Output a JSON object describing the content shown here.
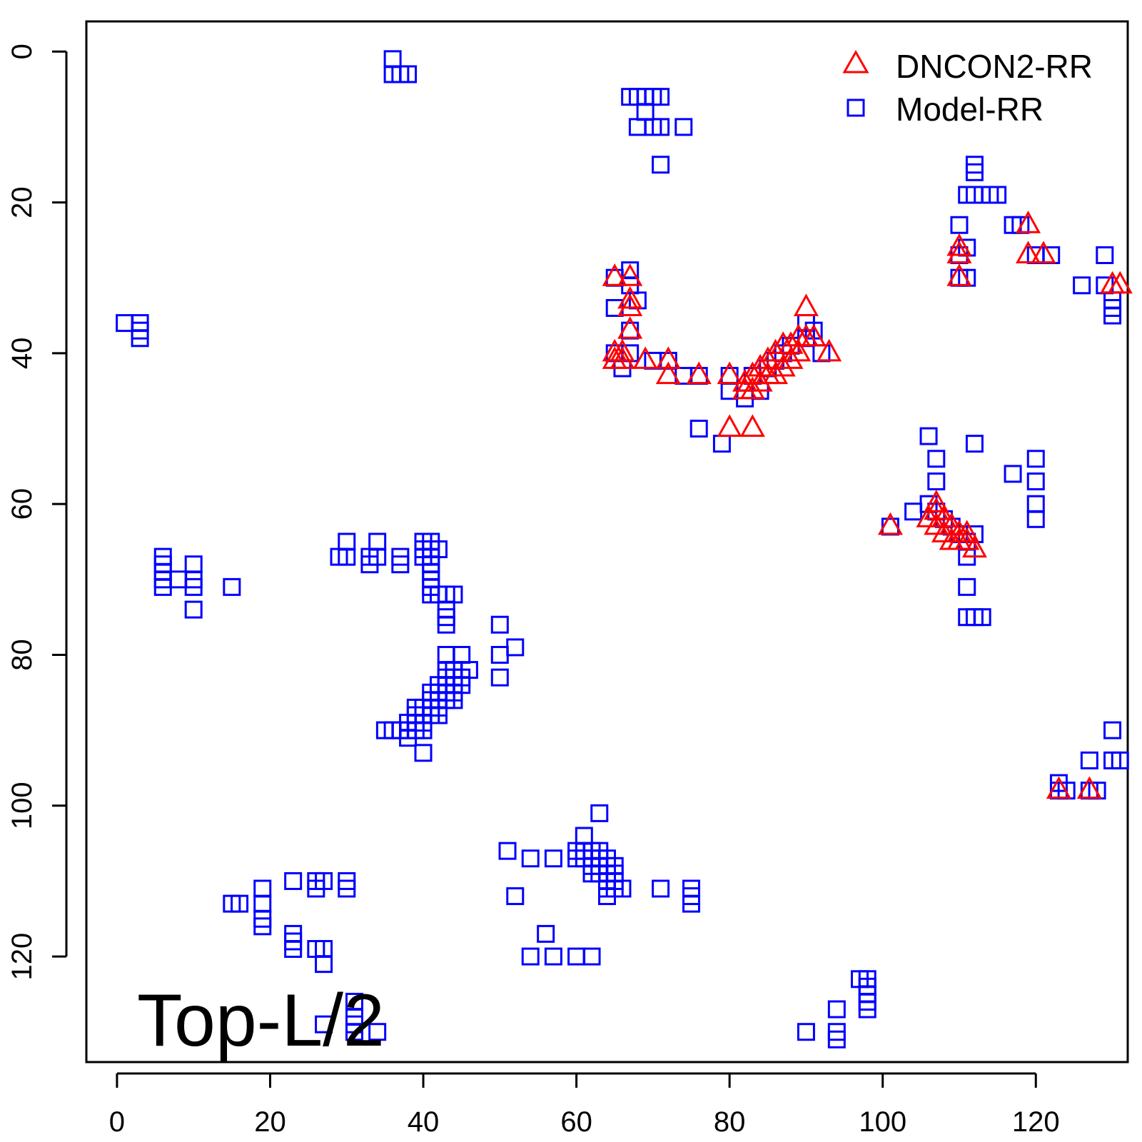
{
  "chart_data": {
    "type": "scatter",
    "title": "",
    "xlabel": "",
    "ylabel": "",
    "xlim": [
      -4,
      132
    ],
    "ylim": [
      134,
      -4
    ],
    "y_inverted": true,
    "grid": false,
    "legend_position": "top-right",
    "x_ticks": [
      0,
      20,
      40,
      60,
      80,
      100,
      120
    ],
    "y_ticks": [
      0,
      20,
      40,
      60,
      80,
      100,
      120
    ],
    "annotation": "Top-L/2",
    "series": [
      {
        "name": "DNCON2-RR",
        "marker": "triangle",
        "color": "#ff0000",
        "points": [
          [
            65,
            30
          ],
          [
            67,
            30
          ],
          [
            67,
            33
          ],
          [
            67,
            34
          ],
          [
            67,
            37
          ],
          [
            65,
            40
          ],
          [
            66,
            40
          ],
          [
            65,
            41
          ],
          [
            66,
            41
          ],
          [
            69,
            41
          ],
          [
            72,
            41
          ],
          [
            72,
            43
          ],
          [
            76,
            43
          ],
          [
            80,
            43
          ],
          [
            82,
            44
          ],
          [
            83,
            43
          ],
          [
            84,
            42
          ],
          [
            85,
            41
          ],
          [
            86,
            40
          ],
          [
            87,
            39
          ],
          [
            88,
            39
          ],
          [
            89,
            38
          ],
          [
            90,
            38
          ],
          [
            91,
            38
          ],
          [
            90,
            34
          ],
          [
            93,
            40
          ],
          [
            82,
            45
          ],
          [
            83,
            45
          ],
          [
            84,
            44
          ],
          [
            85,
            43
          ],
          [
            86,
            43
          ],
          [
            87,
            42
          ],
          [
            88,
            41
          ],
          [
            89,
            40
          ],
          [
            80,
            50
          ],
          [
            83,
            50
          ],
          [
            110,
            26
          ],
          [
            110,
            27
          ],
          [
            110,
            30
          ],
          [
            119,
            23
          ],
          [
            119,
            27
          ],
          [
            121,
            27
          ],
          [
            130,
            31
          ],
          [
            131,
            31
          ],
          [
            101,
            63
          ],
          [
            106,
            62
          ],
          [
            107,
            60
          ],
          [
            107,
            61
          ],
          [
            108,
            62
          ],
          [
            109,
            63
          ],
          [
            110,
            64
          ],
          [
            111,
            64
          ],
          [
            107,
            63
          ],
          [
            108,
            64
          ],
          [
            109,
            65
          ],
          [
            110,
            65
          ],
          [
            111,
            65
          ],
          [
            112,
            66
          ],
          [
            123,
            98
          ],
          [
            127,
            98
          ]
        ]
      },
      {
        "name": "Model-RR",
        "marker": "square",
        "color": "#0000ff",
        "points": [
          [
            36,
            1
          ],
          [
            36,
            3
          ],
          [
            37,
            3
          ],
          [
            38,
            3
          ],
          [
            67,
            6
          ],
          [
            68,
            6
          ],
          [
            69,
            6
          ],
          [
            70,
            6
          ],
          [
            71,
            6
          ],
          [
            69,
            8
          ],
          [
            68,
            10
          ],
          [
            70,
            10
          ],
          [
            71,
            10
          ],
          [
            74,
            10
          ],
          [
            71,
            15
          ],
          [
            1,
            36
          ],
          [
            3,
            36
          ],
          [
            3,
            37
          ],
          [
            3,
            38
          ],
          [
            65,
            30
          ],
          [
            67,
            29
          ],
          [
            67,
            31
          ],
          [
            65,
            34
          ],
          [
            68,
            33
          ],
          [
            67,
            37
          ],
          [
            65,
            40
          ],
          [
            67,
            40
          ],
          [
            66,
            42
          ],
          [
            70,
            41
          ],
          [
            72,
            41
          ],
          [
            74,
            43
          ],
          [
            76,
            43
          ],
          [
            76,
            50
          ],
          [
            79,
            52
          ],
          [
            80,
            43
          ],
          [
            80,
            45
          ],
          [
            82,
            46
          ],
          [
            83,
            43
          ],
          [
            84,
            45
          ],
          [
            85,
            42
          ],
          [
            86,
            41
          ],
          [
            87,
            40
          ],
          [
            88,
            39
          ],
          [
            90,
            36
          ],
          [
            90,
            38
          ],
          [
            91,
            37
          ],
          [
            92,
            40
          ],
          [
            111,
            19
          ],
          [
            112,
            15
          ],
          [
            112,
            16
          ],
          [
            112,
            19
          ],
          [
            114,
            19
          ],
          [
            115,
            19
          ],
          [
            117,
            23
          ],
          [
            118,
            23
          ],
          [
            120,
            27
          ],
          [
            122,
            27
          ],
          [
            110,
            23
          ],
          [
            110,
            27
          ],
          [
            110,
            30
          ],
          [
            111,
            26
          ],
          [
            111,
            30
          ],
          [
            126,
            31
          ],
          [
            129,
            27
          ],
          [
            129,
            31
          ],
          [
            130,
            33
          ],
          [
            130,
            34
          ],
          [
            130,
            35
          ],
          [
            106,
            51
          ],
          [
            107,
            54
          ],
          [
            107,
            57
          ],
          [
            112,
            52
          ],
          [
            117,
            56
          ],
          [
            120,
            54
          ],
          [
            120,
            57
          ],
          [
            120,
            60
          ],
          [
            120,
            62
          ],
          [
            104,
            61
          ],
          [
            101,
            63
          ],
          [
            106,
            60
          ],
          [
            107,
            61
          ],
          [
            108,
            62
          ],
          [
            109,
            63
          ],
          [
            110,
            64
          ],
          [
            111,
            65
          ],
          [
            112,
            64
          ],
          [
            111,
            67
          ],
          [
            111,
            71
          ],
          [
            111,
            75
          ],
          [
            112,
            75
          ],
          [
            113,
            75
          ],
          [
            6,
            67
          ],
          [
            6,
            68
          ],
          [
            6,
            69
          ],
          [
            6,
            70
          ],
          [
            6,
            71
          ],
          [
            8,
            70
          ],
          [
            10,
            68
          ],
          [
            10,
            70
          ],
          [
            10,
            71
          ],
          [
            10,
            74
          ],
          [
            15,
            71
          ],
          [
            29,
            67
          ],
          [
            30,
            65
          ],
          [
            30,
            67
          ],
          [
            33,
            67
          ],
          [
            33,
            68
          ],
          [
            34,
            65
          ],
          [
            34,
            67
          ],
          [
            37,
            67
          ],
          [
            37,
            68
          ],
          [
            40,
            65
          ],
          [
            41,
            65
          ],
          [
            40,
            66
          ],
          [
            41,
            66
          ],
          [
            42,
            66
          ],
          [
            40,
            67
          ],
          [
            41,
            67
          ],
          [
            41,
            68
          ],
          [
            41,
            69
          ],
          [
            41,
            70
          ],
          [
            41,
            71
          ],
          [
            41,
            72
          ],
          [
            42,
            72
          ],
          [
            43,
            72
          ],
          [
            44,
            72
          ],
          [
            43,
            74
          ],
          [
            43,
            75
          ],
          [
            43,
            76
          ],
          [
            43,
            80
          ],
          [
            45,
            80
          ],
          [
            43,
            82
          ],
          [
            44,
            82
          ],
          [
            46,
            82
          ],
          [
            43,
            83
          ],
          [
            44,
            83
          ],
          [
            45,
            83
          ],
          [
            42,
            84
          ],
          [
            43,
            84
          ],
          [
            44,
            84
          ],
          [
            45,
            84
          ],
          [
            41,
            85
          ],
          [
            42,
            85
          ],
          [
            43,
            85
          ],
          [
            44,
            85
          ],
          [
            41,
            86
          ],
          [
            42,
            86
          ],
          [
            43,
            86
          ],
          [
            44,
            86
          ],
          [
            39,
            87
          ],
          [
            40,
            87
          ],
          [
            41,
            87
          ],
          [
            42,
            87
          ],
          [
            39,
            88
          ],
          [
            40,
            88
          ],
          [
            41,
            88
          ],
          [
            42,
            88
          ],
          [
            38,
            89
          ],
          [
            39,
            89
          ],
          [
            40,
            89
          ],
          [
            35,
            90
          ],
          [
            36,
            90
          ],
          [
            37,
            90
          ],
          [
            38,
            90
          ],
          [
            39,
            90
          ],
          [
            40,
            90
          ],
          [
            38,
            91
          ],
          [
            40,
            93
          ],
          [
            50,
            76
          ],
          [
            50,
            80
          ],
          [
            52,
            79
          ],
          [
            50,
            83
          ],
          [
            15,
            113
          ],
          [
            16,
            113
          ],
          [
            19,
            111
          ],
          [
            19,
            113
          ],
          [
            19,
            115
          ],
          [
            19,
            116
          ],
          [
            23,
            110
          ],
          [
            23,
            117
          ],
          [
            23,
            118
          ],
          [
            23,
            119
          ],
          [
            26,
            110
          ],
          [
            27,
            110
          ],
          [
            26,
            111
          ],
          [
            26,
            119
          ],
          [
            27,
            119
          ],
          [
            27,
            121
          ],
          [
            30,
            110
          ],
          [
            30,
            111
          ],
          [
            31,
            126
          ],
          [
            31,
            128
          ],
          [
            31,
            129
          ],
          [
            27,
            129
          ],
          [
            31,
            130
          ],
          [
            34,
            130
          ],
          [
            51,
            106
          ],
          [
            52,
            112
          ],
          [
            54,
            107
          ],
          [
            57,
            107
          ],
          [
            61,
            104
          ],
          [
            60,
            106
          ],
          [
            61,
            106
          ],
          [
            62,
            106
          ],
          [
            63,
            106
          ],
          [
            60,
            107
          ],
          [
            61,
            107
          ],
          [
            62,
            107
          ],
          [
            63,
            107
          ],
          [
            64,
            107
          ],
          [
            62,
            108
          ],
          [
            63,
            108
          ],
          [
            64,
            108
          ],
          [
            65,
            108
          ],
          [
            62,
            109
          ],
          [
            63,
            109
          ],
          [
            64,
            109
          ],
          [
            65,
            109
          ],
          [
            64,
            110
          ],
          [
            65,
            110
          ],
          [
            64,
            111
          ],
          [
            65,
            111
          ],
          [
            66,
            111
          ],
          [
            64,
            112
          ],
          [
            63,
            101
          ],
          [
            71,
            111
          ],
          [
            75,
            111
          ],
          [
            75,
            112
          ],
          [
            75,
            113
          ],
          [
            56,
            117
          ],
          [
            54,
            120
          ],
          [
            57,
            120
          ],
          [
            60,
            120
          ],
          [
            62,
            120
          ],
          [
            97,
            123
          ],
          [
            98,
            123
          ],
          [
            98,
            124
          ],
          [
            98,
            125
          ],
          [
            98,
            126
          ],
          [
            98,
            127
          ],
          [
            94,
            127
          ],
          [
            90,
            130
          ],
          [
            94,
            130
          ],
          [
            94,
            131
          ],
          [
            130,
            90
          ],
          [
            127,
            94
          ],
          [
            130,
            94
          ],
          [
            131,
            94
          ],
          [
            123,
            97
          ],
          [
            123,
            98
          ],
          [
            124,
            98
          ],
          [
            127,
            98
          ],
          [
            128,
            98
          ]
        ]
      }
    ]
  }
}
